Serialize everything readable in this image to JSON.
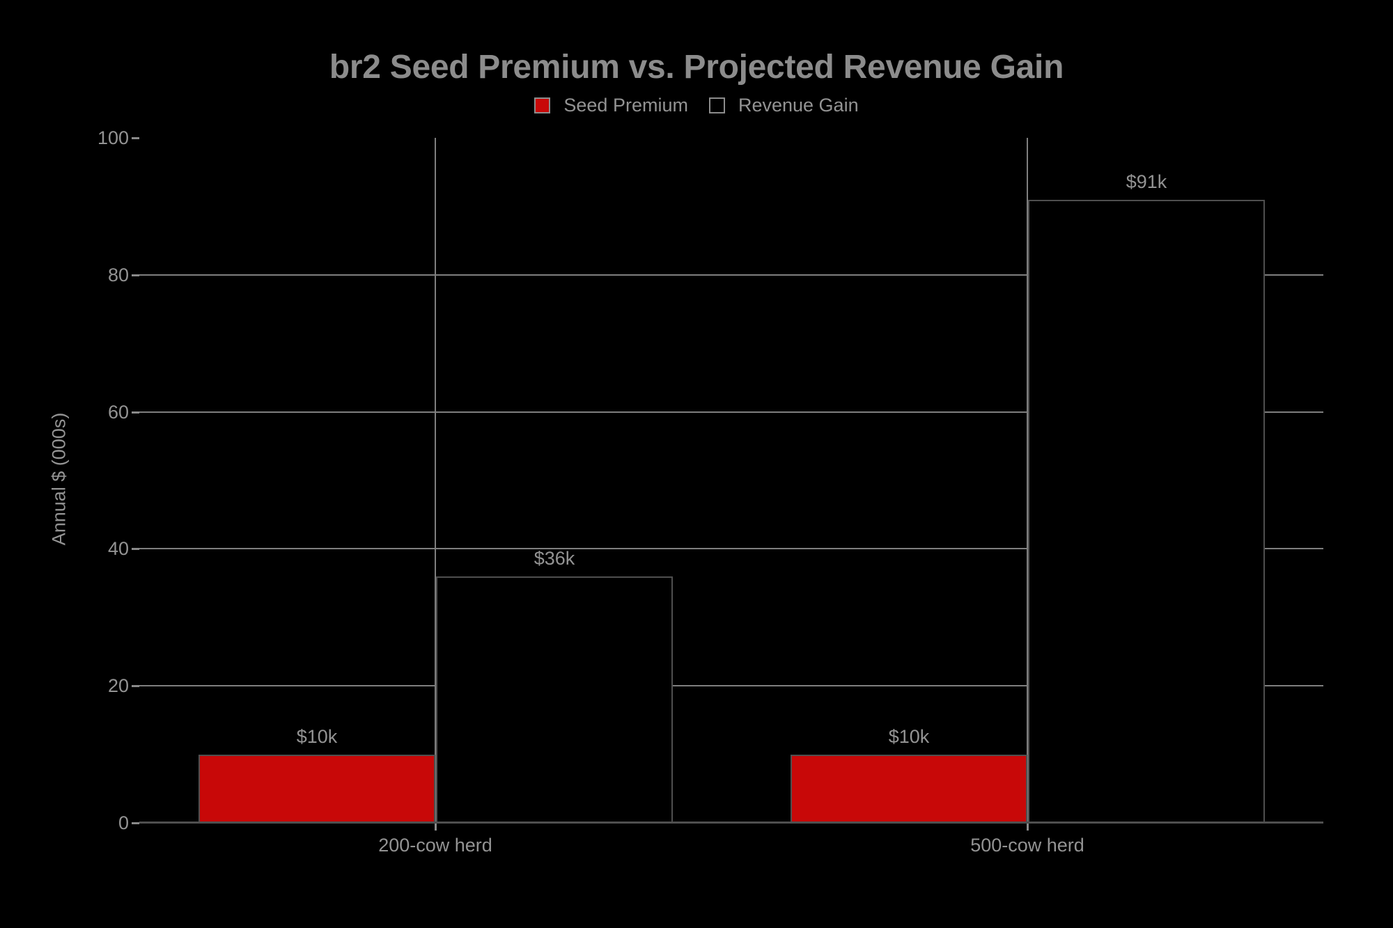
{
  "chart": {
    "title": "br2 Seed Premium vs. Projected Revenue Gain",
    "ylabel": "Annual $ (000s)",
    "legend": [
      {
        "label": "Seed Premium",
        "swatch": "filled-red-square"
      },
      {
        "label": "Revenue Gain",
        "swatch": "outlined-black-square"
      }
    ]
  },
  "chart_data": {
    "type": "bar",
    "title": "br2 Seed Premium vs. Projected Revenue Gain",
    "ylabel": "Annual $ (000s)",
    "xlabel": "",
    "categories": [
      "200-cow herd",
      "500-cow herd"
    ],
    "series": [
      {
        "name": "Seed Premium",
        "values": [
          10,
          10
        ],
        "data_labels": [
          "$10k",
          "$10k"
        ],
        "fill": "#c80808",
        "style": "filled"
      },
      {
        "name": "Revenue Gain",
        "values": [
          36,
          91
        ],
        "data_labels": [
          "$36k",
          "$91k"
        ],
        "fill": "#000000",
        "style": "outlined"
      }
    ],
    "ylim": [
      0,
      100
    ],
    "yticks": [
      0,
      20,
      40,
      60,
      80,
      100
    ],
    "ytick_labels": [
      "0",
      "20",
      "40",
      "60",
      "80",
      "100"
    ],
    "grid": true,
    "grid_x": true,
    "grid_y_values": [
      20,
      40,
      60,
      80
    ],
    "legend_position": "upper center",
    "background": "#000000"
  },
  "colors": {
    "background": "#000000",
    "seed_premium_fill": "#c80808",
    "revenue_gain_fill": "#000000",
    "bar_edge": "#4f4f4f",
    "gridline": "#7f7f7f",
    "axis_line": "#4f4f4f",
    "tick_mark": "#8a8a8a",
    "title_text": "#8c8c8c",
    "label_text": "#939393",
    "value_text": "#939393"
  }
}
